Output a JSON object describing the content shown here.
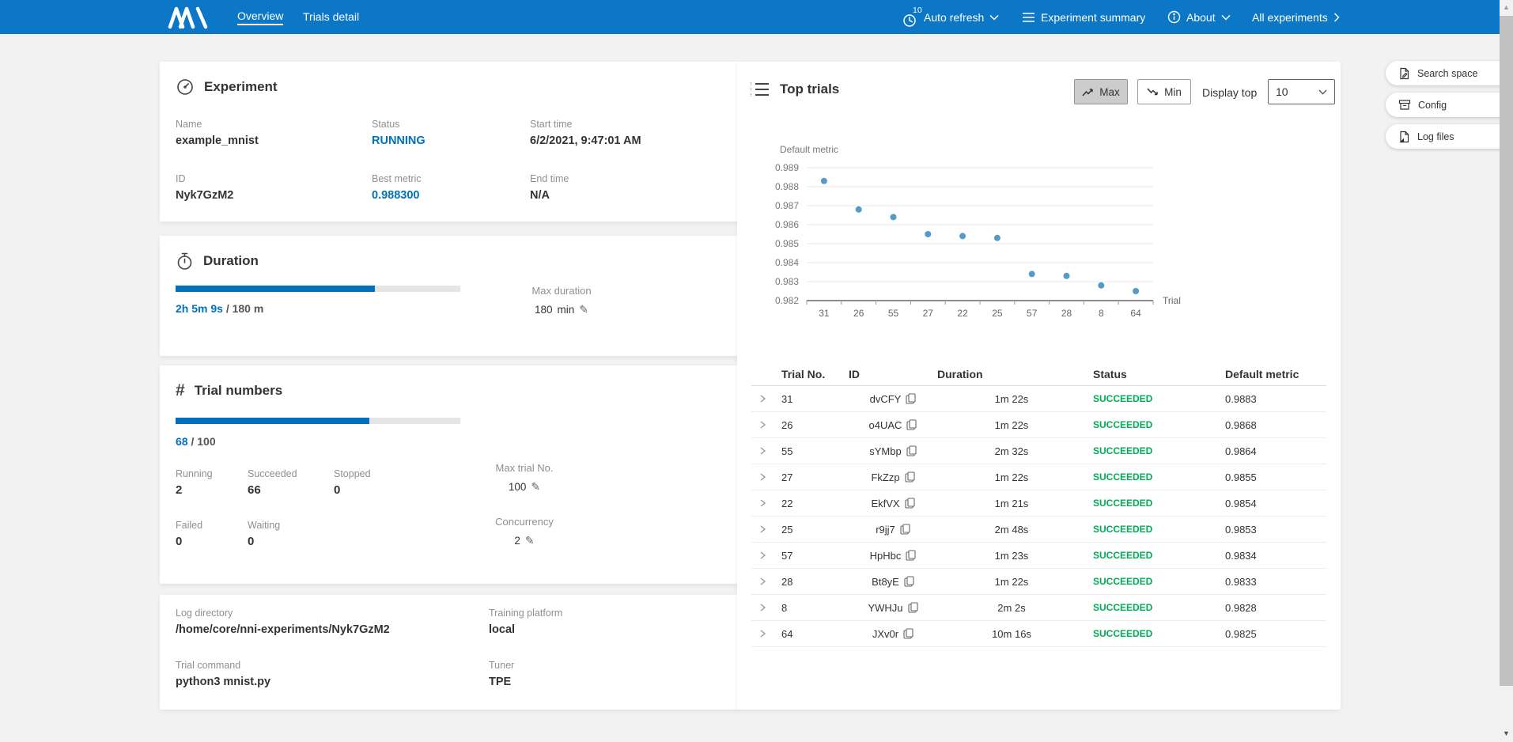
{
  "nav": {
    "tabs": [
      {
        "label": "Overview"
      },
      {
        "label": "Trials detail"
      }
    ],
    "auto_refresh": {
      "badge": "10",
      "label": "Auto refresh"
    },
    "experiment_summary": "Experiment summary",
    "about": "About",
    "all_experiments": "All experiments"
  },
  "experiment_panel": {
    "title": "Experiment",
    "fields": [
      {
        "label": "Name",
        "value": "example_mnist"
      },
      {
        "label": "Status",
        "value": "RUNNING"
      },
      {
        "label": "Start time",
        "value": "6/2/2021, 9:47:01 AM"
      },
      {
        "label": "ID",
        "value": "Nyk7GzM2"
      },
      {
        "label": "Best metric",
        "value": "0.988300"
      },
      {
        "label": "End time",
        "value": "N/A"
      }
    ]
  },
  "duration_panel": {
    "title": "Duration",
    "progress_pct": 70,
    "current": "2h 5m 9s",
    "total": "/ 180 m",
    "max_label": "Max duration",
    "max_value": "180",
    "max_unit": "min"
  },
  "trials_panel": {
    "title": "Trial numbers",
    "progress_pct": 68,
    "current": "68",
    "total": "/ 100",
    "stats": [
      {
        "label": "Running",
        "value": "2"
      },
      {
        "label": "Succeeded",
        "value": "66"
      },
      {
        "label": "Stopped",
        "value": "0"
      },
      {
        "label": "Failed",
        "value": "0"
      },
      {
        "label": "Waiting",
        "value": "0"
      }
    ],
    "max_trial_label": "Max trial No.",
    "max_trial_value": "100",
    "concurrency_label": "Concurrency",
    "concurrency_value": "2"
  },
  "info_panel": {
    "fields": [
      {
        "label": "Log directory",
        "value": "/home/core/nni-experiments/Nyk7GzM2"
      },
      {
        "label": "Training platform",
        "value": "local"
      },
      {
        "label": "Trial command",
        "value": "python3 mnist.py"
      },
      {
        "label": "Tuner",
        "value": "TPE"
      }
    ]
  },
  "top_trials": {
    "title": "Top trials",
    "max_button": "Max",
    "min_button": "Min",
    "display_top_label": "Display top",
    "display_top_value": "10",
    "table": {
      "headers": [
        "Trial No.",
        "ID",
        "Duration",
        "Status",
        "Default metric"
      ],
      "rows": [
        {
          "no": "31",
          "id": "dvCFY",
          "duration": "1m 22s",
          "status": "SUCCEEDED",
          "metric": "0.9883"
        },
        {
          "no": "26",
          "id": "o4UAC",
          "duration": "1m 22s",
          "status": "SUCCEEDED",
          "metric": "0.9868"
        },
        {
          "no": "55",
          "id": "sYMbp",
          "duration": "2m 32s",
          "status": "SUCCEEDED",
          "metric": "0.9864"
        },
        {
          "no": "27",
          "id": "FkZzp",
          "duration": "1m 22s",
          "status": "SUCCEEDED",
          "metric": "0.9855"
        },
        {
          "no": "22",
          "id": "EkfVX",
          "duration": "1m 21s",
          "status": "SUCCEEDED",
          "metric": "0.9854"
        },
        {
          "no": "25",
          "id": "r9jj7",
          "duration": "2m 48s",
          "status": "SUCCEEDED",
          "metric": "0.9853"
        },
        {
          "no": "57",
          "id": "HpHbc",
          "duration": "1m 23s",
          "status": "SUCCEEDED",
          "metric": "0.9834"
        },
        {
          "no": "28",
          "id": "Bt8yE",
          "duration": "1m 22s",
          "status": "SUCCEEDED",
          "metric": "0.9833"
        },
        {
          "no": "8",
          "id": "YWHJu",
          "duration": "2m 2s",
          "status": "SUCCEEDED",
          "metric": "0.9828"
        },
        {
          "no": "64",
          "id": "JXv0r",
          "duration": "10m 16s",
          "status": "SUCCEEDED",
          "metric": "0.9825"
        }
      ]
    }
  },
  "chart_data": {
    "type": "scatter",
    "title": "Top trials default metric",
    "x": [
      "31",
      "26",
      "55",
      "27",
      "22",
      "25",
      "57",
      "28",
      "8",
      "64"
    ],
    "y": [
      0.9883,
      0.9868,
      0.9864,
      0.9855,
      0.9854,
      0.9853,
      0.9834,
      0.9833,
      0.9828,
      0.9825
    ],
    "xlabel": "Trial",
    "ylabel": "Default metric",
    "ylim": [
      0.982,
      0.989
    ],
    "yticks": [
      "0.989",
      "0.988",
      "0.987",
      "0.986",
      "0.985",
      "0.984",
      "0.983",
      "0.982"
    ],
    "grid": true,
    "legend": "none",
    "point_color": "#569bc8"
  },
  "side_buttons": [
    "Search space",
    "Config",
    "Log files"
  ],
  "icons": {
    "pencil": "✎",
    "hash": "#"
  },
  "colors": {
    "nav_blue": "#0c77c6",
    "accent_blue": "#0071bc",
    "success_green": "#00ac56",
    "point_blue": "#569bc8"
  }
}
